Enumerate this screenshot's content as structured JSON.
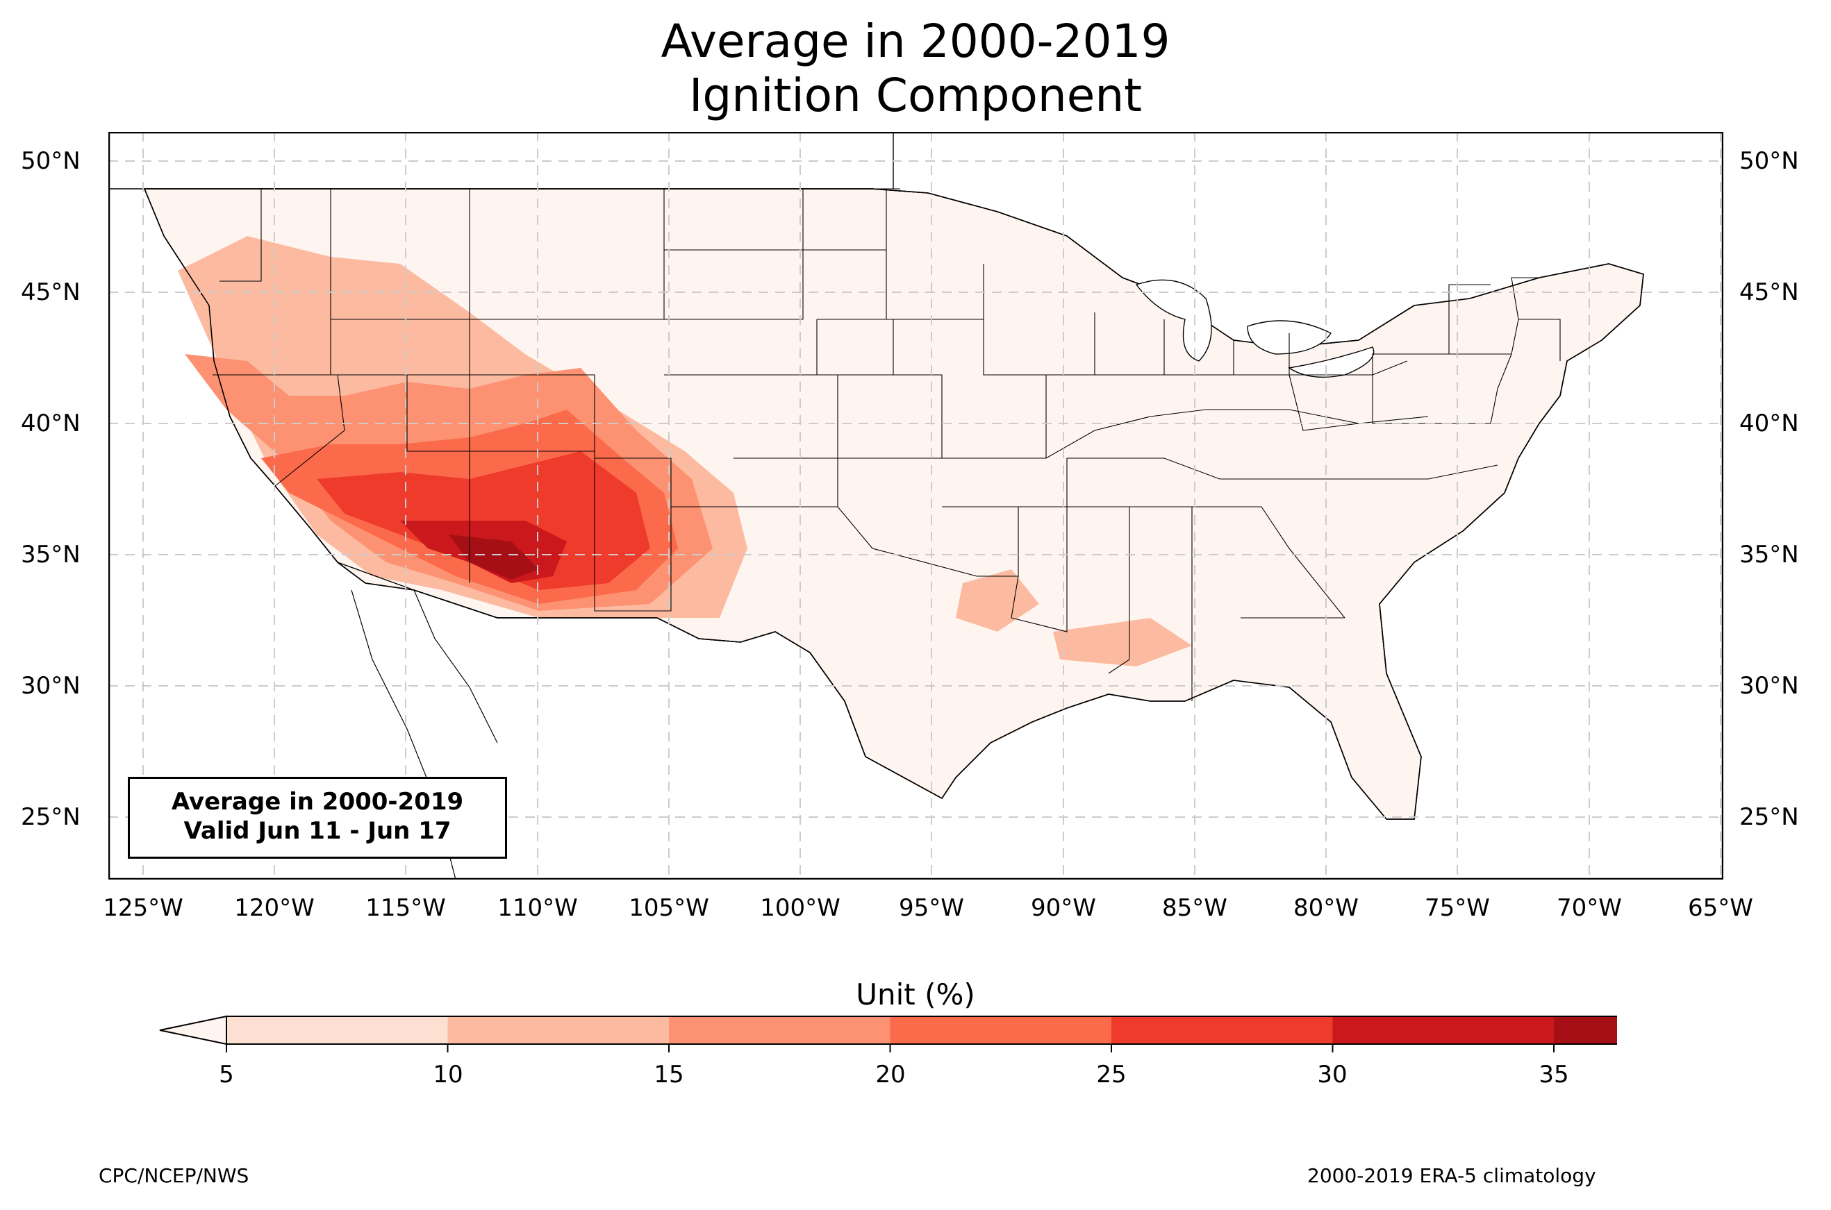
{
  "title": {
    "line1": "Average in 2000-2019",
    "line2": "Ignition Component"
  },
  "info_box": {
    "line1": "Average in 2000-2019",
    "line2": "Valid Jun 11 - Jun 17"
  },
  "lat_ticks": [
    "50°N",
    "45°N",
    "40°N",
    "35°N",
    "30°N",
    "25°N"
  ],
  "lon_ticks": [
    "125°W",
    "120°W",
    "115°W",
    "110°W",
    "105°W",
    "100°W",
    "95°W",
    "90°W",
    "85°W",
    "80°W",
    "75°W",
    "70°W",
    "65°W"
  ],
  "colorbar": {
    "title": "Unit (%)",
    "ticks": [
      "5",
      "10",
      "15",
      "20",
      "25",
      "30",
      "35"
    ],
    "colors": [
      "#fee0d2",
      "#fcbba1",
      "#fc9272",
      "#fb6a4a",
      "#ef3b2c",
      "#cb181d",
      "#a50f15"
    ],
    "under_color": "#fff5f0",
    "over_color": "#67000d"
  },
  "footer": {
    "left": "CPC/NCEP/NWS",
    "right": "2000-2019 ERA-5 climatology"
  }
}
